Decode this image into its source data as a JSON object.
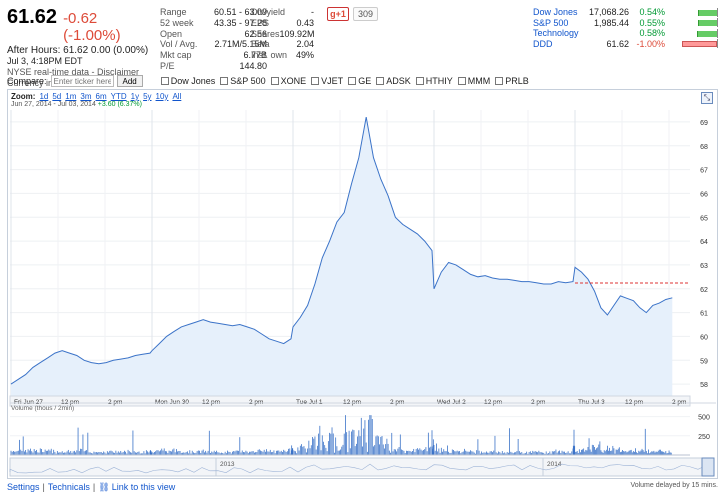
{
  "quote": {
    "price": "61.62",
    "change": "-0.62 (-1.00%)",
    "after_hours": "After Hours: 61.62 0.00 (0.00%)",
    "date": "Jul 3, 4:18PM EDT",
    "disclaimer": "NYSE real-time data - Disclaimer",
    "currency": "Currency in USD"
  },
  "stats1": [
    {
      "k": "Range",
      "v": "60.51 - 63.09"
    },
    {
      "k": "52 week",
      "v": "43.35 - 97.28"
    },
    {
      "k": "Open",
      "v": "62.56"
    },
    {
      "k": "Vol / Avg.",
      "v": "2.71M/5.15M"
    },
    {
      "k": "Mkt cap",
      "v": "6.77B"
    },
    {
      "k": "P/E",
      "v": "144.80"
    }
  ],
  "stats2": [
    {
      "k": "Div/yield",
      "v": "-"
    },
    {
      "k": "EPS",
      "v": "0.43"
    },
    {
      "k": "Shares",
      "v": "109.92M"
    },
    {
      "k": "Beta",
      "v": "2.04"
    },
    {
      "k": "Inst. own",
      "v": "49%"
    }
  ],
  "gplus": {
    "label": "g+1",
    "count": "309"
  },
  "indices": [
    {
      "name": "Dow Jones",
      "value": "17,068.26",
      "change": "0.54%",
      "pct": 0.54
    },
    {
      "name": "S&P 500",
      "value": "1,985.44",
      "change": "0.55%",
      "pct": 0.55
    },
    {
      "name": "Technology",
      "value": "",
      "change": "0.58%",
      "pct": 0.58
    },
    {
      "name": "DDD",
      "value": "61.62",
      "change": "-1.00%",
      "pct": -1.0
    }
  ],
  "compare": {
    "label": "Compare:",
    "placeholder": "Enter ticker here",
    "add": "Add",
    "items": [
      "Dow Jones",
      "S&P 500",
      "XONE",
      "VJET",
      "GE",
      "ADSK",
      "HTHIY",
      "MMM",
      "PRLB"
    ]
  },
  "zoom": {
    "label": "Zoom:",
    "options": [
      "1d",
      "5d",
      "1m",
      "3m",
      "6m",
      "YTD",
      "1y",
      "5y",
      "10y",
      "All"
    ],
    "range": "Jun 27, 2014 - Jul 03, 2014",
    "range_change": "+3.60 (6.37%)"
  },
  "volume_label": "Volume (thous / 2min)",
  "timeline_years": [
    "2013",
    "2014"
  ],
  "footer": {
    "settings": "Settings",
    "technicals": "Technicals",
    "link": "Link to this view",
    "delay": "Volume delayed by 15 mins."
  },
  "chart_data": {
    "type": "area",
    "title": "",
    "ylim": [
      57.5,
      69.5
    ],
    "y_ticks": [
      58,
      59,
      60,
      61,
      62,
      63,
      64,
      65,
      66,
      67,
      68,
      69
    ],
    "x_tick_labels": [
      "Fri Jun 27",
      "12 pm",
      "2 pm",
      "Mon Jun 30",
      "12 pm",
      "2 pm",
      "Tue Jul 1",
      "12 pm",
      "2 pm",
      "Wed Jul 2",
      "12 pm",
      "2 pm",
      "Thu Jul 3",
      "12 pm",
      "2 pm"
    ],
    "previous_close": 62.24,
    "sessions": [
      {
        "name": "Jun 27",
        "values": [
          58.0,
          58.2,
          58.4,
          58.7,
          58.9,
          59.1,
          59.3,
          59.4,
          59.3,
          59.2,
          59.0,
          58.9,
          58.85,
          58.9,
          59.0,
          59.05,
          59.1,
          59.2,
          59.25,
          59.3
        ]
      },
      {
        "name": "Jun 30",
        "values": [
          59.4,
          59.7,
          60.0,
          60.2,
          60.4,
          60.5,
          60.6,
          60.7,
          60.6,
          60.55,
          60.5,
          60.45,
          60.5,
          60.4,
          60.3,
          60.1,
          59.9,
          59.8,
          59.7,
          59.9
        ]
      },
      {
        "name": "Jul 1",
        "values": [
          60.4,
          60.8,
          61.3,
          62.2,
          63.3,
          64.0,
          64.8,
          65.2,
          66.4,
          67.5,
          69.2,
          67.5,
          66.6,
          65.9,
          65.0,
          64.7,
          64.5,
          64.3,
          64.0,
          63.6
        ]
      },
      {
        "name": "Jul 2",
        "values": [
          62.0,
          62.7,
          63.1,
          63.0,
          62.8,
          62.6,
          62.5,
          62.55,
          62.45,
          62.4,
          62.4,
          62.35,
          62.3,
          62.3,
          62.25,
          62.2,
          62.2,
          62.3,
          62.25,
          62.3
        ]
      },
      {
        "name": "Jul 3",
        "values": [
          62.9,
          62.7,
          62.4,
          61.9,
          61.2,
          60.9,
          61.3,
          61.7,
          61.6,
          61.5,
          61.2,
          61.0,
          61.3,
          61.4,
          61.55,
          61.62
        ]
      }
    ],
    "volume_ticks": [
      250,
      500
    ],
    "volume_ylim": [
      0,
      560
    ]
  }
}
